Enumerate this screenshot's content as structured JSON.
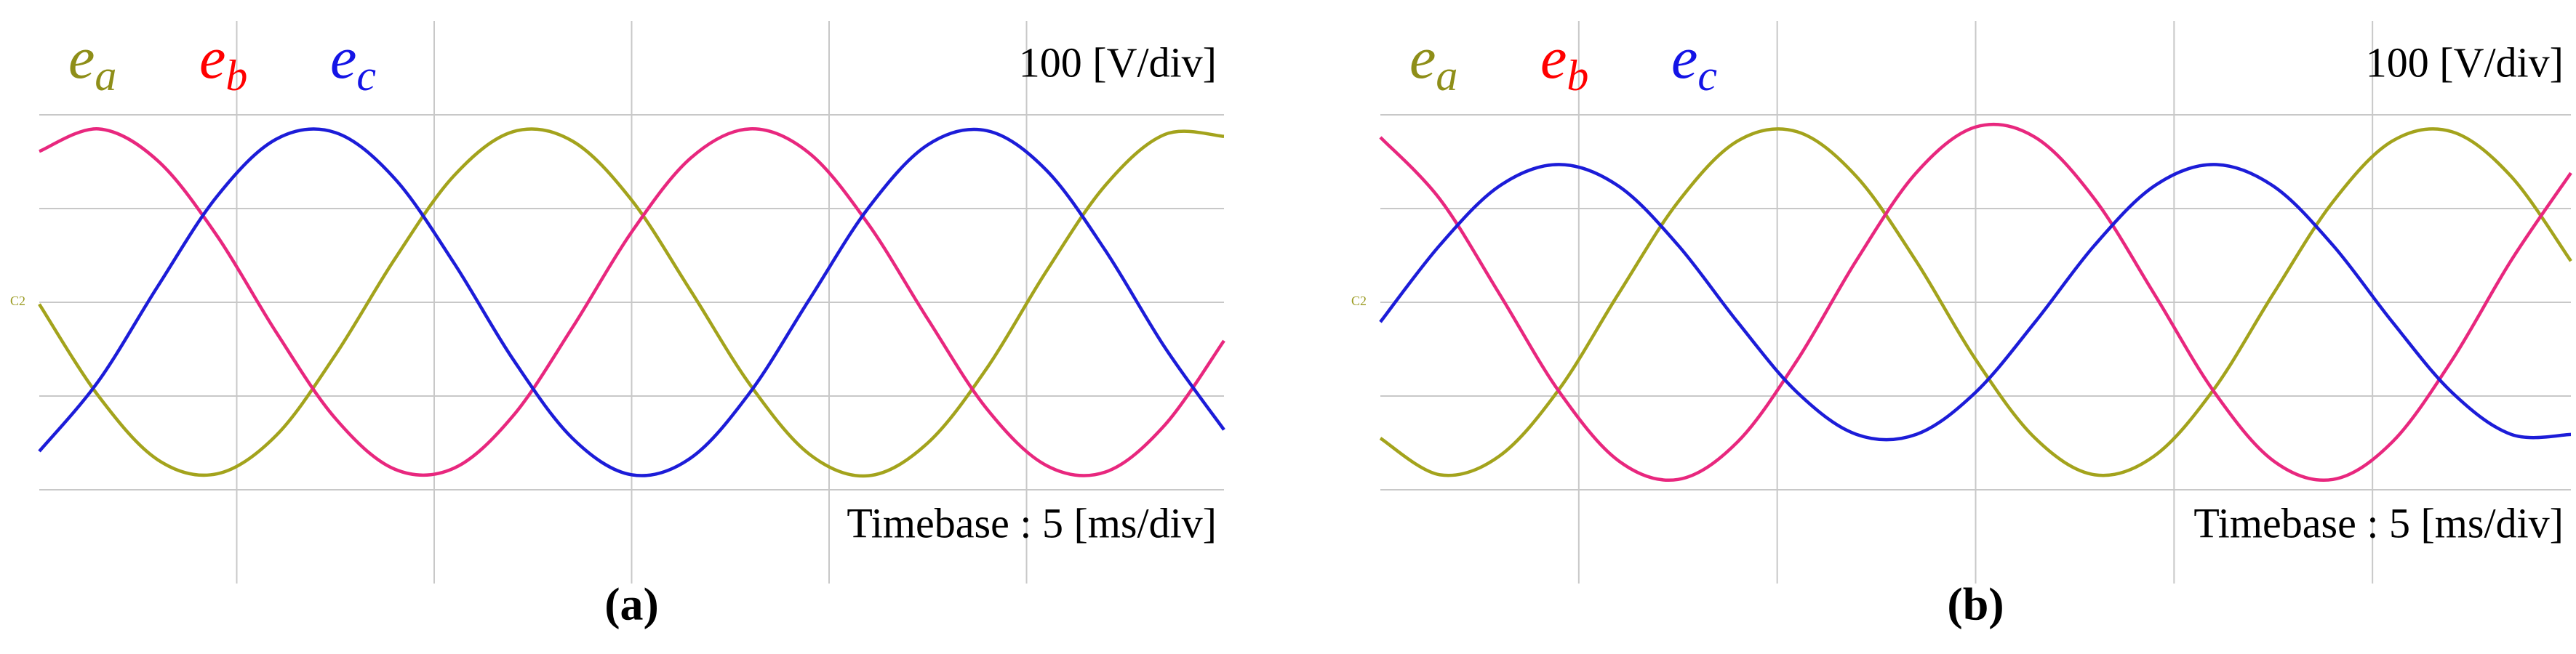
{
  "chart_data": [
    {
      "type": "line",
      "x": [
        0,
        1.5,
        3,
        4.5,
        6,
        7.5,
        9,
        10.5,
        12,
        13.5,
        15,
        16.5,
        18,
        19.5,
        21,
        22.5,
        24,
        25.5,
        27,
        28.5,
        30
      ],
      "series": [
        {
          "name": "ea",
          "color": "#a3a31c",
          "label_color": "#8e8e18",
          "values": [
            -2,
            -100,
            -168,
            -183,
            -142,
            -56,
            46,
            135,
            182,
            172,
            109,
            12,
            -88,
            -162,
            -185,
            -150,
            -70,
            33,
            125,
            179,
            177
          ]
        },
        {
          "name": "eb",
          "color": "#e8277e",
          "label_color": "#ff0000",
          "values": [
            161,
            185,
            151,
            71,
            -32,
            -124,
            -178,
            -177,
            -121,
            -27,
            75,
            154,
            185,
            159,
            83,
            -18,
            -114,
            -174,
            -181,
            -131,
            -41
          ]
        },
        {
          "name": "ec",
          "color": "#1c1cd8",
          "label_color": "#1414e6",
          "values": [
            -159,
            -84,
            17,
            113,
            174,
            181,
            132,
            42,
            -61,
            -145,
            -184,
            -166,
            -96,
            3,
            101,
            168,
            183,
            141,
            55,
            -48,
            -136
          ]
        }
      ],
      "xlim": [
        0,
        30
      ],
      "ylim": [
        -300,
        300
      ],
      "xticks": [
        5,
        10,
        15,
        20,
        25
      ],
      "yticks": [
        -200,
        -100,
        0,
        100,
        200
      ],
      "grid": true,
      "scale_label": "100 [V/div]",
      "timebase_label": "Timebase : 5 [ms/div]",
      "channel_marker": "C2",
      "caption": "(a)"
    },
    {
      "type": "line",
      "x": [
        0,
        1.5,
        3,
        4.5,
        6,
        7.5,
        9,
        10.5,
        12,
        13.5,
        15,
        16.5,
        18,
        19.5,
        21,
        22.5,
        24,
        25.5,
        27,
        28.5,
        30
      ],
      "series": [
        {
          "name": "ea",
          "color": "#a3a31c",
          "label_color": "#8e8e18",
          "values": [
            -145,
            -184,
            -164,
            -93,
            9,
            107,
            172,
            182,
            134,
            44,
            -61,
            -145,
            -184,
            -164,
            -93,
            9,
            107,
            172,
            182,
            134,
            44
          ]
        },
        {
          "name": "eb",
          "color": "#e8277e",
          "label_color": "#ff0000",
          "values": [
            176,
            110,
            9,
            -95,
            -169,
            -189,
            -149,
            -62,
            45,
            138,
            187,
            176,
            110,
            9,
            -95,
            -169,
            -189,
            -149,
            -62,
            45,
            138
          ]
        },
        {
          "name": "ec",
          "color": "#1c1cd8",
          "label_color": "#1414e6",
          "values": [
            -21,
            61,
            124,
            147,
            124,
            61,
            -21,
            -96,
            -141,
            -141,
            -96,
            -21,
            61,
            124,
            147,
            124,
            61,
            -21,
            -96,
            -141,
            -141
          ]
        }
      ],
      "xlim": [
        0,
        30
      ],
      "ylim": [
        -300,
        300
      ],
      "xticks": [
        5,
        10,
        15,
        20,
        25
      ],
      "yticks": [
        -200,
        -100,
        0,
        100,
        200
      ],
      "grid": true,
      "scale_label": "100 [V/div]",
      "timebase_label": "Timebase : 5 [ms/div]",
      "channel_marker": "C2",
      "caption": "(b)"
    }
  ]
}
